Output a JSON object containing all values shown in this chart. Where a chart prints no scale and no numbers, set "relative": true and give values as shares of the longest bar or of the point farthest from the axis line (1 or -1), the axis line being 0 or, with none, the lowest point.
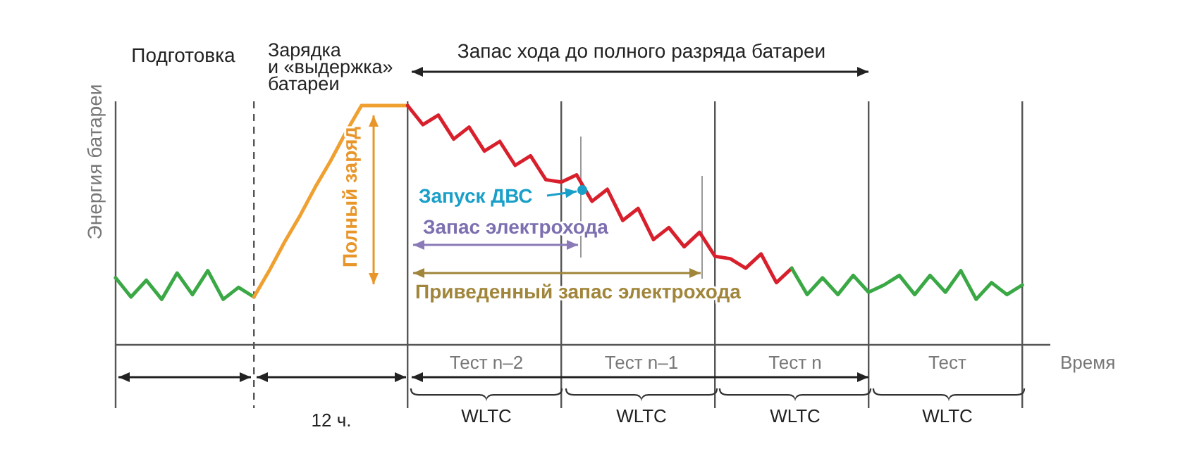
{
  "chart_data": {
    "type": "line",
    "relative": true,
    "grid": "x",
    "ylabel": "Энергия батареи",
    "xlabel": "Время",
    "categories": [
      null,
      null,
      null,
      null,
      null,
      null,
      null,
      null,
      null,
      null,
      null,
      null,
      null,
      null,
      null,
      null,
      null,
      null,
      null,
      null,
      null,
      null,
      null,
      null,
      null,
      null,
      null,
      null,
      null,
      null,
      null,
      null,
      null,
      null,
      null,
      null,
      null,
      null,
      null,
      null,
      null,
      null,
      null,
      null,
      null,
      null,
      null,
      null,
      null,
      null,
      null,
      null,
      null,
      null,
      null,
      null,
      null,
      null,
      null,
      null
    ],
    "series": [
      {
        "color": "#3aa845",
        "values": [
          0.28,
          0.2,
          0.27,
          0.19,
          0.3,
          0.21,
          0.31,
          0.19,
          0.24,
          0.2,
          null,
          null,
          null,
          null,
          null,
          null,
          null,
          null,
          null,
          null,
          null,
          null,
          null,
          null,
          null,
          null,
          null,
          null,
          null,
          null,
          null,
          null,
          null,
          null,
          null,
          null,
          null,
          null,
          null,
          null,
          null,
          null,
          null,
          null,
          null,
          null,
          null,
          null,
          null,
          null,
          null,
          null,
          null,
          null,
          null,
          null,
          null,
          null,
          null,
          null
        ]
      },
      {
        "color": "#f0a030",
        "values": [
          null,
          null,
          null,
          null,
          null,
          null,
          null,
          null,
          null,
          0.2,
          0.31,
          0.43,
          0.54,
          0.66,
          0.77,
          0.89,
          1.0,
          1.0,
          1.0,
          1.0,
          null,
          null,
          null,
          null,
          null,
          null,
          null,
          null,
          null,
          null,
          null,
          null,
          null,
          null,
          null,
          null,
          null,
          null,
          null,
          null,
          null,
          null,
          null,
          null,
          null,
          null,
          null,
          null,
          null,
          null,
          null,
          null,
          null,
          null,
          null,
          null,
          null,
          null,
          null,
          null
        ]
      },
      {
        "color": "#d8202c",
        "values": [
          null,
          null,
          null,
          null,
          null,
          null,
          null,
          null,
          null,
          null,
          null,
          null,
          null,
          null,
          null,
          null,
          null,
          null,
          null,
          1.0,
          0.92,
          0.96,
          0.86,
          0.91,
          0.81,
          0.85,
          0.75,
          0.79,
          0.69,
          0.68,
          0.71,
          0.6,
          0.65,
          0.52,
          0.57,
          0.44,
          0.49,
          0.41,
          0.47,
          0.37,
          0.36,
          0.32,
          0.38,
          0.26,
          0.32,
          null,
          null,
          null,
          null,
          null,
          null,
          null,
          null,
          null,
          null,
          null,
          null,
          null,
          null,
          null
        ]
      },
      {
        "color": "#3aa845",
        "values": [
          null,
          null,
          null,
          null,
          null,
          null,
          null,
          null,
          null,
          null,
          null,
          null,
          null,
          null,
          null,
          null,
          null,
          null,
          null,
          null,
          null,
          null,
          null,
          null,
          null,
          null,
          null,
          null,
          null,
          null,
          null,
          null,
          null,
          null,
          null,
          null,
          null,
          null,
          null,
          null,
          null,
          null,
          null,
          null,
          0.32,
          0.21,
          0.28,
          0.21,
          0.29,
          0.22,
          0.25,
          0.29,
          0.21,
          0.29,
          0.22,
          0.31,
          0.19,
          0.26,
          0.21,
          0.25
        ]
      }
    ],
    "annotations": [
      "Подготовка",
      "Зарядка\nи «выдержка»\nбатареи",
      "Запас хода до полного разряда батареи",
      "Полный заряд",
      "Запуск ДВС",
      "Запас электрохода",
      "Приведенный запас электрохода",
      "12 ч.",
      "Тест n–2",
      "Тест n–1",
      "Тест n",
      "Тест",
      "WLTC",
      "WLTC",
      "WLTC",
      "WLTC"
    ]
  }
}
